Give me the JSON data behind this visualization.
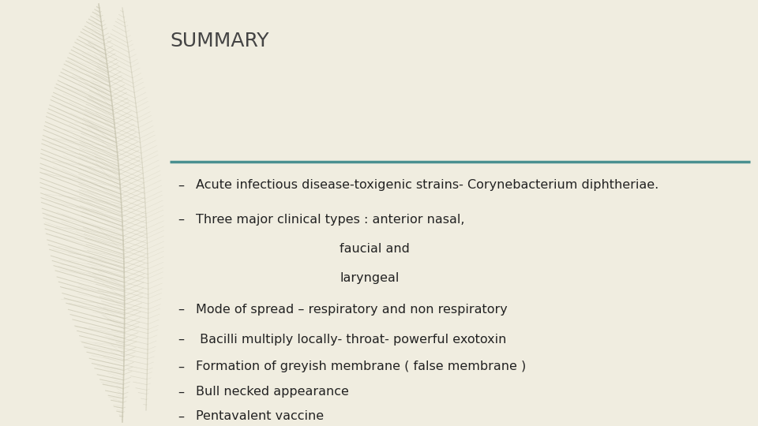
{
  "background_color": "#f0ede0",
  "title": "SUMMARY",
  "title_fontsize": 18,
  "title_color": "#444444",
  "line_color": "#4a9090",
  "line_width": 2.5,
  "bullet_char": "–",
  "text_color": "#222222",
  "font_size": 11.5,
  "feather_color": "#c8c5b0",
  "feather_alpha": 0.75,
  "bullets": [
    {
      "text": "Acute infectious disease-toxigenic strains- Corynebacterium diphtheriae.",
      "indent": false
    },
    {
      "text": "Three major clinical types : anterior nasal,",
      "indent": false
    },
    {
      "text": "faucial and",
      "indent": true
    },
    {
      "text": "laryngeal",
      "indent": true
    },
    {
      "text": "Mode of spread – respiratory and non respiratory",
      "indent": false
    },
    {
      "text": " Bacilli multiply locally- throat- powerful exotoxin",
      "indent": false
    },
    {
      "text": "Formation of greyish membrane ( false membrane )",
      "indent": false
    },
    {
      "text": "Bull necked appearance",
      "indent": false
    },
    {
      "text": "Pentavalent vaccine",
      "indent": false
    }
  ]
}
